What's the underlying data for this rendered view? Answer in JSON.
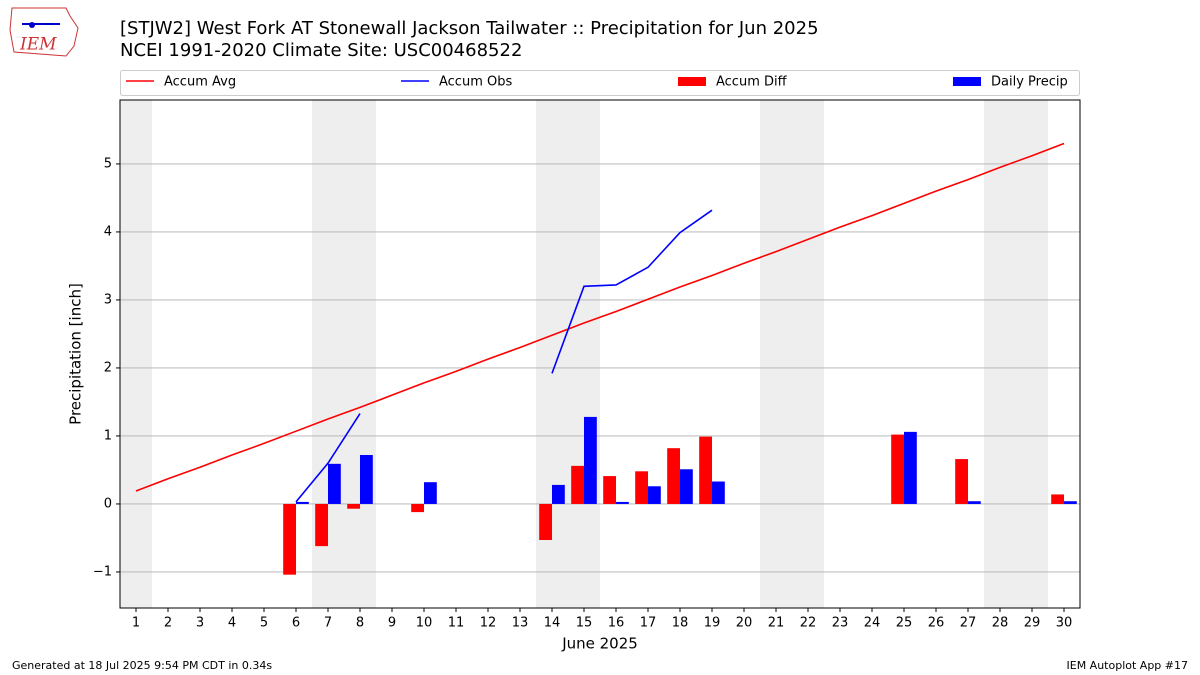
{
  "chart_data": {
    "type": "combo",
    "title": "[STJW2] West Fork  AT Stonewall Jackson Tailwater :: Precipitation for Jun 2025",
    "subtitle": "NCEI 1991-2020 Climate Site: USC00468522",
    "logo": "IEM",
    "xlabel": "June 2025",
    "ylabel": "Precipitation [inch]",
    "x": [
      1,
      2,
      3,
      4,
      5,
      6,
      7,
      8,
      9,
      10,
      11,
      12,
      13,
      14,
      15,
      16,
      17,
      18,
      19,
      20,
      21,
      22,
      23,
      24,
      25,
      26,
      27,
      28,
      29,
      30
    ],
    "xlim": [
      0.5,
      30.5
    ],
    "xticks": [
      1,
      2,
      3,
      4,
      5,
      6,
      7,
      8,
      9,
      10,
      11,
      12,
      13,
      14,
      15,
      16,
      17,
      18,
      19,
      20,
      21,
      22,
      23,
      24,
      25,
      26,
      27,
      28,
      29,
      30
    ],
    "ylim": [
      -1.53,
      5.94
    ],
    "yticks": [
      {
        "value": -1,
        "label": "−1"
      },
      0,
      1,
      2,
      3,
      4,
      5
    ],
    "grid": true,
    "series": [
      {
        "name": "Accum Avg",
        "kind": "line",
        "color": "#ff0000",
        "values": [
          0.19,
          0.37,
          0.54,
          0.72,
          0.89,
          1.07,
          1.25,
          1.42,
          1.6,
          1.78,
          1.95,
          2.13,
          2.3,
          2.48,
          2.66,
          2.83,
          3.01,
          3.19,
          3.36,
          3.54,
          3.71,
          3.89,
          4.07,
          4.24,
          4.42,
          4.6,
          4.77,
          4.95,
          5.12,
          5.3
        ]
      },
      {
        "name": "Accum Obs",
        "kind": "line",
        "color": "#0000ff",
        "values": [
          null,
          null,
          null,
          null,
          null,
          0.03,
          0.6,
          1.33,
          null,
          null,
          null,
          null,
          null,
          1.92,
          3.2,
          3.22,
          3.48,
          3.99,
          4.32,
          null,
          null,
          null,
          null,
          null,
          null,
          null,
          null,
          null,
          null,
          null
        ]
      },
      {
        "name": "Accum Diff",
        "kind": "bar",
        "color": "#ff0000",
        "values": [
          0,
          0,
          0,
          0,
          0,
          -1.04,
          -0.62,
          -0.07,
          0,
          -0.12,
          0,
          0,
          0,
          -0.53,
          0.56,
          0.41,
          0.48,
          0.82,
          0.99,
          0,
          0,
          0,
          0,
          0,
          1.02,
          0,
          0.66,
          0,
          0,
          0.14
        ]
      },
      {
        "name": "Daily Precip",
        "kind": "bar",
        "color": "#0000ff",
        "values": [
          0,
          0,
          0,
          0,
          0,
          0.03,
          0.59,
          0.72,
          0,
          0.32,
          0,
          0,
          0,
          0.28,
          1.28,
          0.03,
          0.26,
          0.51,
          0.33,
          0,
          0,
          0,
          0,
          0,
          1.06,
          0,
          0.04,
          0,
          0,
          0.04
        ]
      }
    ],
    "footer_left": "Generated at 18 Jul 2025 9:54 PM CDT in 0.34s",
    "footer_right": "IEM Autoplot App #17"
  }
}
